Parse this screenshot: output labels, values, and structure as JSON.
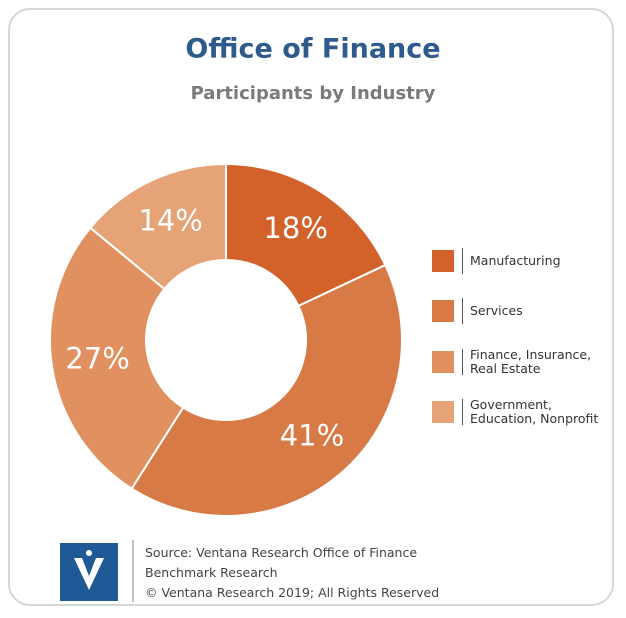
{
  "chart_data": {
    "type": "donut",
    "title": "Office of Finance",
    "subtitle": "Participants by Industry",
    "categories": [
      "Manufacturing",
      "Services",
      "Finance, Insurance, Real Estate",
      "Government, Education, Nonprofit"
    ],
    "values": [
      18,
      41,
      27,
      14
    ],
    "value_labels": [
      "18%",
      "41%",
      "27%",
      "14%"
    ],
    "colors": [
      "#d2622a",
      "#d77a45",
      "#e0915f",
      "#e6a377"
    ],
    "legend": "right",
    "source": "Source: Ventana Research Office of Finance Benchmark Research",
    "copyright": "© Ventana Research 2019; All Rights Reserved"
  }
}
